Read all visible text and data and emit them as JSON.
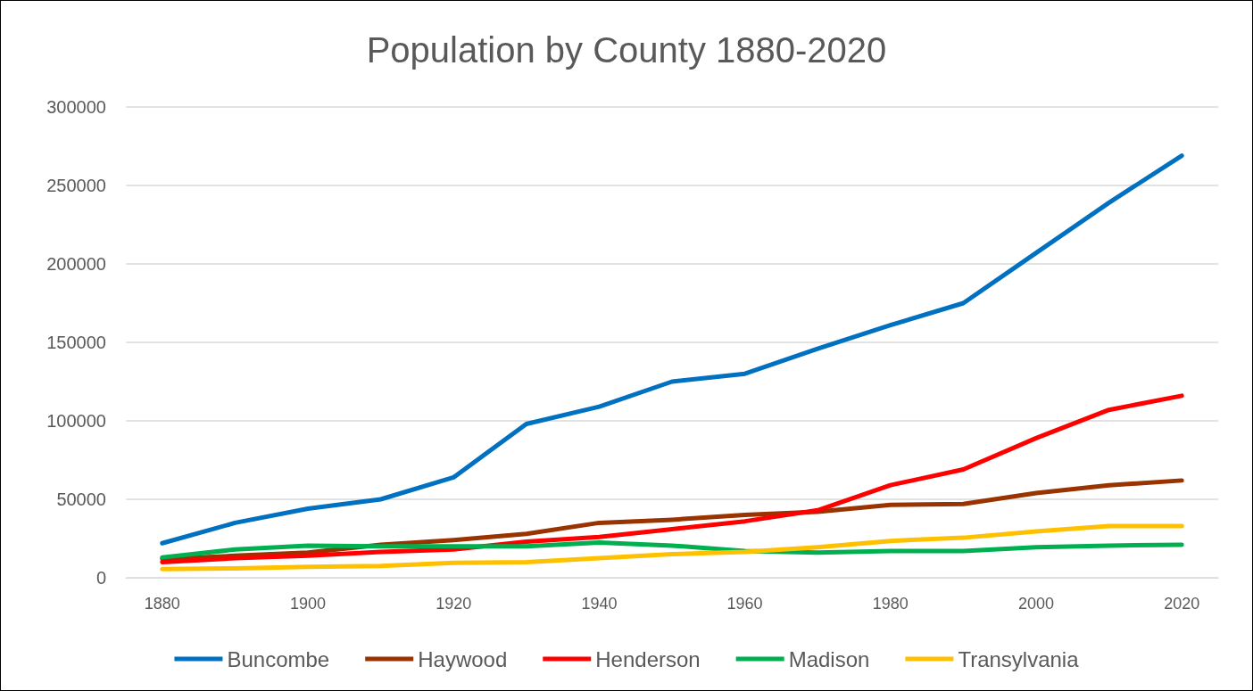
{
  "chart_data": {
    "type": "line",
    "title": "Population by County 1880-2020",
    "categories": [
      "1880",
      null,
      "1900",
      null,
      "1920",
      null,
      "1940",
      null,
      "1960",
      null,
      "1980",
      null,
      "2000",
      null,
      "2020"
    ],
    "series": [
      {
        "name": "Buncombe",
        "color": "#0070c0",
        "values": [
          22000,
          35000,
          44000,
          50000,
          64000,
          98000,
          109000,
          125000,
          130000,
          146000,
          161000,
          175000,
          207000,
          239000,
          269000
        ]
      },
      {
        "name": "Haywood",
        "color": "#993300",
        "values": [
          12000,
          14000,
          16000,
          21000,
          24000,
          28000,
          35000,
          37000,
          40000,
          42000,
          46500,
          47000,
          54000,
          59000,
          62000
        ]
      },
      {
        "name": "Henderson",
        "color": "#ff0000",
        "values": [
          10000,
          12500,
          14000,
          16500,
          18000,
          23000,
          26000,
          31000,
          36000,
          43000,
          59000,
          69000,
          89000,
          107000,
          116000
        ]
      },
      {
        "name": "Madison",
        "color": "#00b050",
        "values": [
          13000,
          18000,
          20500,
          20000,
          20000,
          20000,
          22500,
          20500,
          17000,
          16000,
          17000,
          17000,
          19500,
          20500,
          21000
        ]
      },
      {
        "name": "Transylvania",
        "color": "#ffc000",
        "values": [
          5500,
          6000,
          7000,
          7500,
          9500,
          10000,
          12500,
          15000,
          16500,
          19500,
          23500,
          25500,
          29500,
          33000,
          33000
        ]
      }
    ],
    "ylim": [
      0,
      300000
    ],
    "yticks": [
      0,
      50000,
      100000,
      150000,
      200000,
      250000,
      300000
    ],
    "grid": "y",
    "legend": "bottom",
    "marker": "none",
    "line_style": "solid"
  }
}
